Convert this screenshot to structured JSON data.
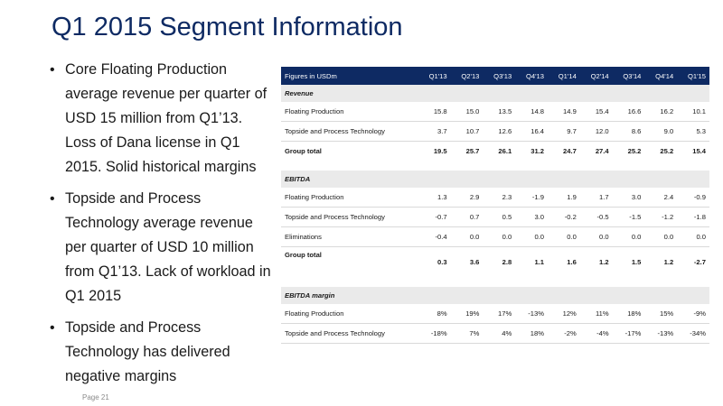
{
  "title": "Q1 2015 Segment Information",
  "bullets": [
    "Core Floating Production average revenue per quarter of USD 15 million from Q1’13. Loss of Dana license in Q1 2015. Solid historical margins",
    "Topside and Process Technology average revenue per quarter of USD 10 million from Q1’13. Lack of workload in Q1 2015",
    "Topside and Process Technology has delivered negative margins"
  ],
  "footer": "Page 21",
  "table": {
    "header": [
      "Figures in USDm",
      "Q1'13",
      "Q2'13",
      "Q3'13",
      "Q4'13",
      "Q1'14",
      "Q2'14",
      "Q3'14",
      "Q4'14",
      "Q1'15"
    ],
    "revenue": {
      "section": "Revenue",
      "rows": [
        {
          "label": "Floating Production",
          "values": [
            "15.8",
            "15.0",
            "13.5",
            "14.8",
            "14.9",
            "15.4",
            "16.6",
            "16.2",
            "10.1"
          ]
        },
        {
          "label": "Topside and Process Technology",
          "values": [
            "3.7",
            "10.7",
            "12.6",
            "16.4",
            "9.7",
            "12.0",
            "8.6",
            "9.0",
            "5.3"
          ]
        }
      ],
      "total": {
        "label": "Group total",
        "values": [
          "19.5",
          "25.7",
          "26.1",
          "31.2",
          "24.7",
          "27.4",
          "25.2",
          "25.2",
          "15.4"
        ]
      }
    },
    "ebitda": {
      "section": "EBITDA",
      "rows": [
        {
          "label": "Floating Production",
          "values": [
            "1.3",
            "2.9",
            "2.3",
            "-1.9",
            "1.9",
            "1.7",
            "3.0",
            "2.4",
            "-0.9"
          ]
        },
        {
          "label": "Topside and Process Technology",
          "values": [
            "-0.7",
            "0.7",
            "0.5",
            "3.0",
            "-0.2",
            "-0.5",
            "-1.5",
            "-1.2",
            "-1.8"
          ]
        },
        {
          "label": "Eliminations",
          "values": [
            "-0.4",
            "0.0",
            "0.0",
            "0.0",
            "0.0",
            "0.0",
            "0.0",
            "0.0",
            "0.0"
          ]
        }
      ],
      "total": {
        "label": "Group total",
        "values": [
          "0.3",
          "3.6",
          "2.8",
          "1.1",
          "1.6",
          "1.2",
          "1.5",
          "1.2",
          "-2.7"
        ]
      }
    },
    "margin": {
      "section": "EBITDA margin",
      "rows": [
        {
          "label": "Floating Production",
          "values": [
            "8%",
            "19%",
            "17%",
            "-13%",
            "12%",
            "11%",
            "18%",
            "15%",
            "-9%"
          ]
        },
        {
          "label": "Topside and Process Technology",
          "values": [
            "-18%",
            "7%",
            "4%",
            "18%",
            "-2%",
            "-4%",
            "-17%",
            "-13%",
            "-34%"
          ]
        }
      ]
    }
  },
  "colors": {
    "brand_navy": "#0e2a63",
    "section_gray": "#eaeaea"
  }
}
